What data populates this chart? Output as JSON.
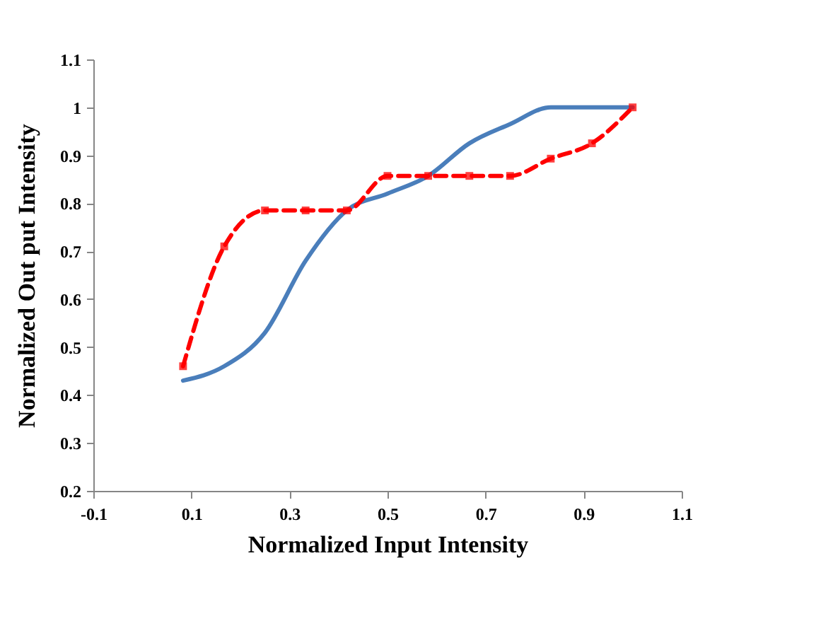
{
  "chart_data": {
    "type": "line",
    "xlabel": "Normalized Input Intensity",
    "ylabel": "Normalized Out put Intensity",
    "x": [
      0.083,
      0.167,
      0.25,
      0.333,
      0.417,
      0.5,
      0.583,
      0.667,
      0.75,
      0.833,
      0.917,
      1.0
    ],
    "series": [
      {
        "color": "#4a7ebb",
        "marker": "none",
        "line_style": "solid",
        "values": [
          0.43,
          0.46,
          0.53,
          0.68,
          0.785,
          0.82,
          0.857,
          0.925,
          0.965,
          1.0,
          1.0,
          1.0
        ]
      },
      {
        "color": "#ff0000",
        "marker": "square",
        "line_style": "dashed",
        "values": [
          0.46,
          0.71,
          0.785,
          0.785,
          0.785,
          0.857,
          0.857,
          0.857,
          0.857,
          0.893,
          0.925,
          1.0
        ]
      }
    ],
    "xlim": [
      -0.1,
      1.1
    ],
    "xticks": [
      -0.1,
      0.1,
      0.3,
      0.5,
      0.7,
      0.9,
      1.1
    ],
    "ylim": [
      0.2,
      1.1
    ],
    "yticks": [
      0.2,
      0.3,
      0.4,
      0.5,
      0.6,
      0.7,
      0.8,
      0.9,
      1,
      1.1
    ],
    "grid": false
  }
}
